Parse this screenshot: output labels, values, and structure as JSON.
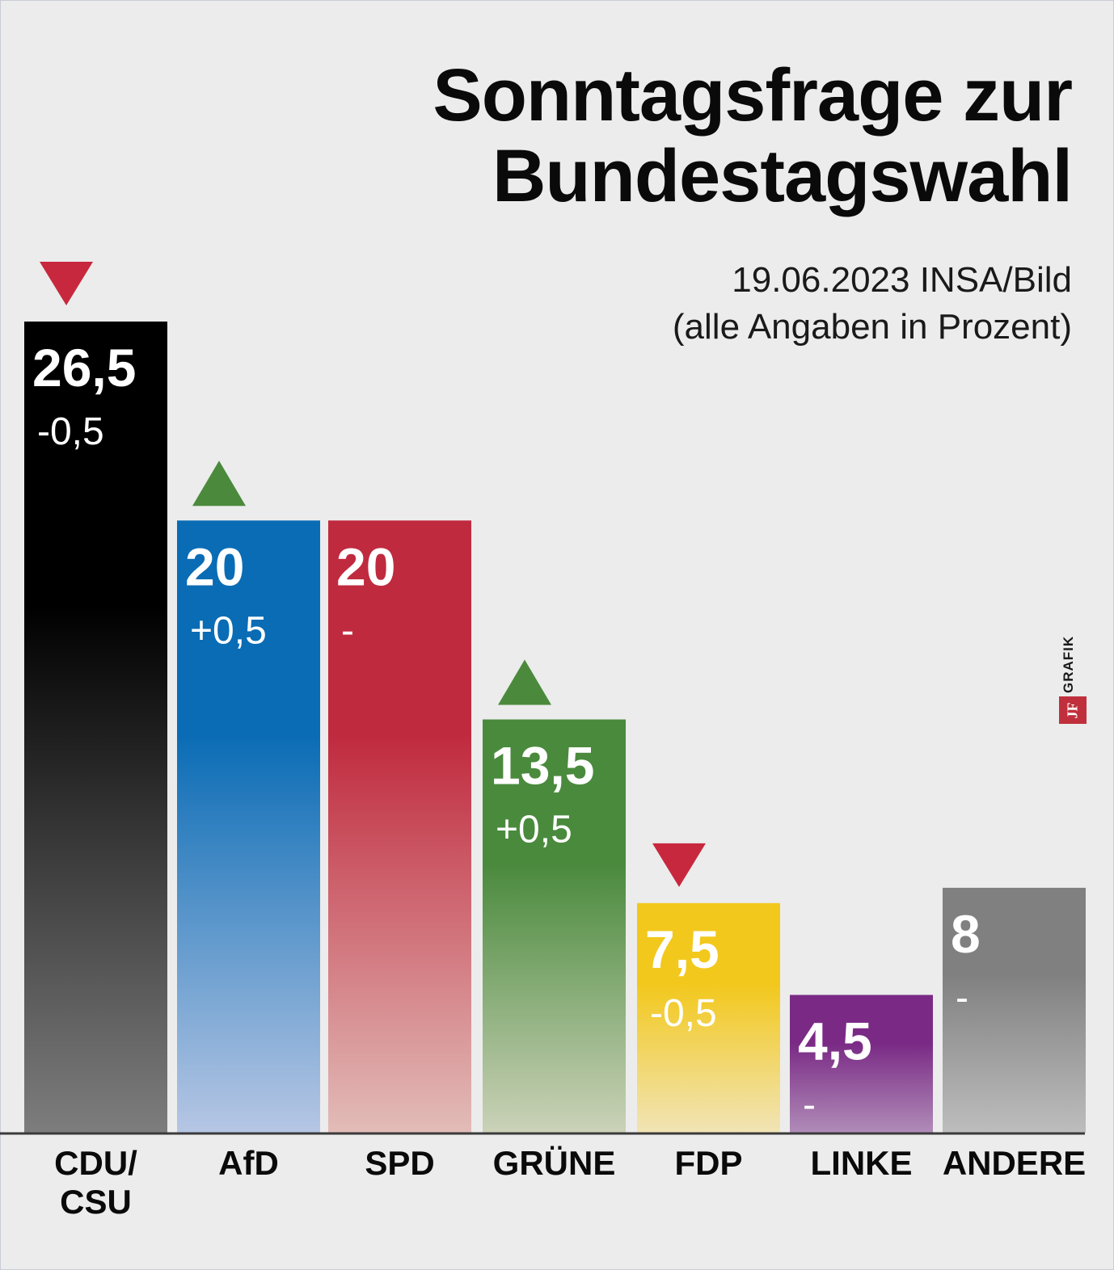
{
  "title_line1": "Sonntagsfrage zur",
  "title_line2": "Bundestagswahl",
  "subtitle_line1": "19.06.2023 INSA/Bild",
  "subtitle_line2": "(alle Angaben in Prozent)",
  "logo": {
    "text": "GRAFIK",
    "mark": "JF"
  },
  "chart_data": {
    "type": "bar",
    "title": "Sonntagsfrage zur Bundestagswahl",
    "unit": "Prozent",
    "ylim": [
      0,
      26.5
    ],
    "categories": [
      "CDU/CSU",
      "AfD",
      "SPD",
      "GRÜNE",
      "FDP",
      "LINKE",
      "ANDERE"
    ],
    "bars": [
      {
        "label": [
          "CDU/",
          "CSU"
        ],
        "value": 26.5,
        "value_label": "26,5",
        "change": "-0,5",
        "trend": "down",
        "color_top": "#000000",
        "color_bottom": "#7d7d7d"
      },
      {
        "label": [
          "AfD"
        ],
        "value": 20,
        "value_label": "20",
        "change": "+0,5",
        "trend": "up",
        "color_top": "#0a6cb5",
        "color_bottom": "#b6c6e4"
      },
      {
        "label": [
          "SPD"
        ],
        "value": 20,
        "value_label": "20",
        "change": "-",
        "trend": "none",
        "color_top": "#c02a3e",
        "color_bottom": "#e2bcb8"
      },
      {
        "label": [
          "GRÜNE"
        ],
        "value": 13.5,
        "value_label": "13,5",
        "change": "+0,5",
        "trend": "up",
        "color_top": "#4a8a3d",
        "color_bottom": "#cbd2b8"
      },
      {
        "label": [
          "FDP"
        ],
        "value": 7.5,
        "value_label": "7,5",
        "change": "-0,5",
        "trend": "down",
        "color_top": "#f2c81c",
        "color_bottom": "#f1e4b6"
      },
      {
        "label": [
          "LINKE"
        ],
        "value": 4.5,
        "value_label": "4,5",
        "change": "-",
        "trend": "none",
        "color_top": "#7a2a85",
        "color_bottom": "#b08cb8"
      },
      {
        "label": [
          "ANDERE"
        ],
        "value": 8,
        "value_label": "8",
        "change": "-",
        "trend": "none",
        "color_top": "#808080",
        "color_bottom": "#bdbdbd"
      }
    ],
    "trend_colors": {
      "up": "#4b8a3c",
      "down": "#c8283d"
    }
  }
}
